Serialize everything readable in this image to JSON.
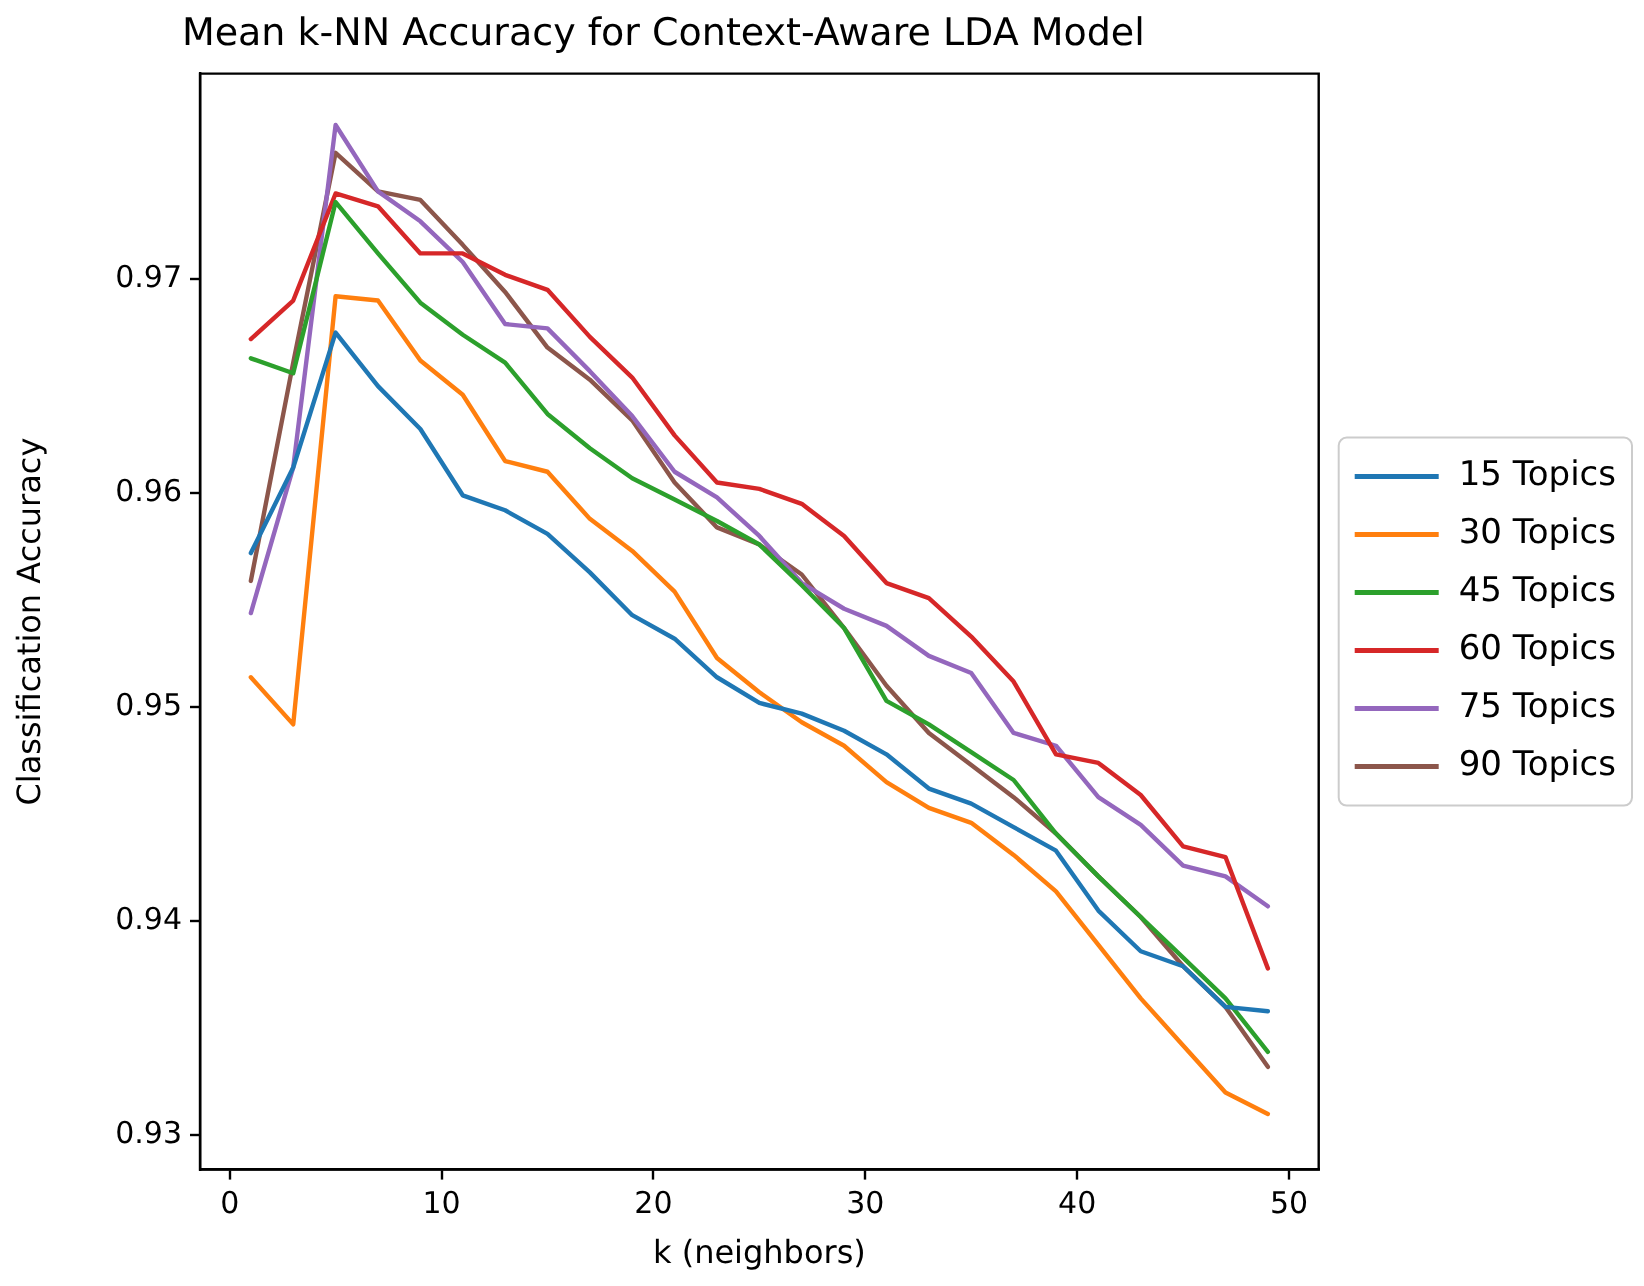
{
  "chart_data": {
    "type": "line",
    "title": "Mean k-NN Accuracy for Context-Aware LDA Model",
    "xlabel": "k (neighbors)",
    "ylabel": "Classification Accuracy",
    "x": [
      1,
      3,
      5,
      7,
      9,
      11,
      13,
      15,
      17,
      19,
      21,
      23,
      25,
      27,
      29,
      31,
      33,
      35,
      37,
      39,
      41,
      43,
      45,
      47,
      49
    ],
    "xlim": [
      -1.4,
      51.4
    ],
    "xticks": [
      0,
      10,
      20,
      30,
      40,
      50
    ],
    "ylim": [
      0.9284,
      0.9796
    ],
    "yticks": [
      0.93,
      0.94,
      0.95,
      0.96,
      0.97
    ],
    "grid": false,
    "legend": "right",
    "marker": "none",
    "line_style": "solid",
    "series": [
      {
        "name": "15 Topics",
        "color": "#1f77b4",
        "values": [
          0.9572,
          0.9612,
          0.9675,
          0.965,
          0.963,
          0.9599,
          0.9592,
          0.9581,
          0.9563,
          0.9543,
          0.9532,
          0.9514,
          0.9502,
          0.9497,
          0.9489,
          0.9478,
          0.9462,
          0.9455,
          0.9444,
          0.9433,
          0.9405,
          0.9386,
          0.9379,
          0.936,
          0.9358
        ]
      },
      {
        "name": "30 Topics",
        "color": "#ff7f0e",
        "values": [
          0.9514,
          0.9492,
          0.9692,
          0.969,
          0.9662,
          0.9646,
          0.9615,
          0.961,
          0.9588,
          0.9573,
          0.9554,
          0.9523,
          0.9507,
          0.9493,
          0.9482,
          0.9465,
          0.9453,
          0.9446,
          0.9431,
          0.9414,
          0.9389,
          0.9364,
          0.9342,
          0.932,
          0.931
        ]
      },
      {
        "name": "45 Topics",
        "color": "#2ca02c",
        "values": [
          0.9663,
          0.9656,
          0.9736,
          0.9712,
          0.9689,
          0.9674,
          0.9661,
          0.9637,
          0.9621,
          0.9607,
          0.9597,
          0.9587,
          0.9576,
          0.9557,
          0.9537,
          0.9503,
          0.9492,
          0.9479,
          0.9466,
          0.9441,
          0.9421,
          0.9402,
          0.9383,
          0.9364,
          0.9339
        ]
      },
      {
        "name": "60 Topics",
        "color": "#d62728",
        "values": [
          0.9672,
          0.969,
          0.974,
          0.9734,
          0.9712,
          0.9712,
          0.9702,
          0.9695,
          0.9673,
          0.9654,
          0.9627,
          0.9605,
          0.9602,
          0.9595,
          0.958,
          0.9558,
          0.9551,
          0.9533,
          0.9512,
          0.9478,
          0.9474,
          0.9459,
          0.9435,
          0.943,
          0.9378
        ]
      },
      {
        "name": "75 Topics",
        "color": "#9467bd",
        "values": [
          0.9544,
          0.9612,
          0.9772,
          0.9741,
          0.9727,
          0.9708,
          0.9679,
          0.9677,
          0.9657,
          0.9636,
          0.961,
          0.9598,
          0.958,
          0.9558,
          0.9546,
          0.9538,
          0.9524,
          0.9516,
          0.9488,
          0.9482,
          0.9458,
          0.9445,
          0.9426,
          0.9421,
          0.9407
        ]
      },
      {
        "name": "90 Topics",
        "color": "#8c564b",
        "values": [
          0.9559,
          0.9661,
          0.9759,
          0.9741,
          0.9737,
          0.9716,
          0.9694,
          0.9668,
          0.9653,
          0.9634,
          0.9605,
          0.9584,
          0.9576,
          0.9562,
          0.9537,
          0.951,
          0.9488,
          0.9473,
          0.9458,
          0.9441,
          0.9421,
          0.9402,
          0.9379,
          0.936,
          0.9332
        ]
      }
    ]
  }
}
